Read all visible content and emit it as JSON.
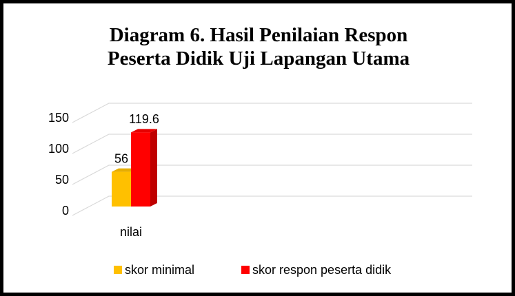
{
  "chart_data": {
    "type": "bar3d",
    "title": "Diagram 6. Hasil Penilaian Respon Peserta Didik Uji Lapangan Utama",
    "categories": [
      "nilai"
    ],
    "series": [
      {
        "name": "skor minimal",
        "color": "#ffc000",
        "values": [
          56
        ]
      },
      {
        "name": "skor respon peserta didik",
        "color": "#ff0000",
        "values": [
          119.6
        ]
      }
    ],
    "ylim": [
      0,
      150
    ],
    "yticks": [
      0,
      50,
      100,
      150
    ],
    "grid": true,
    "legend": "bottom"
  }
}
